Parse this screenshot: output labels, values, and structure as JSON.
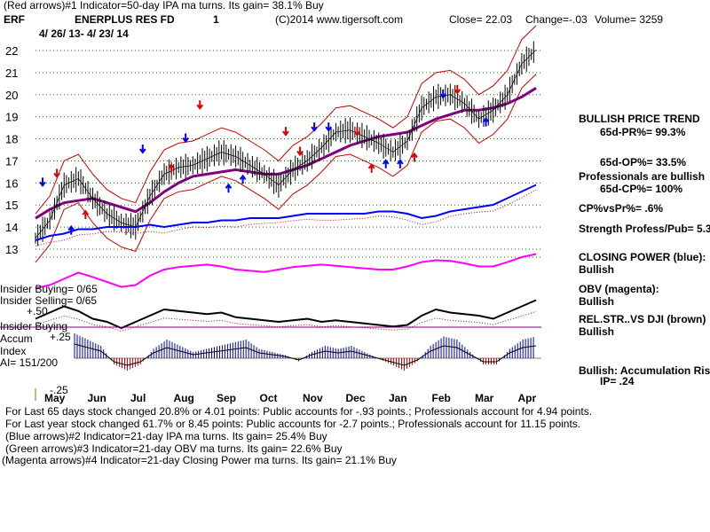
{
  "header": {
    "line1": "(Red arrows)#1 Indicator=50-day IPA ma turns. Its gain= 38.1% Buy",
    "symbol": "ERF",
    "name": "ENERPLUS RES FD",
    "one": "1",
    "copyright": "(C)2014 www.tigersoft.com",
    "close": "Close= 22.03",
    "change": "Change=-.03",
    "volume": "Volume= 3259",
    "daterange": "4/ 26/ 13- 4/ 23/ 14"
  },
  "right_panel": {
    "bullish_trend": "BULLISH PRICE TREND",
    "pr": "65d-PR%= 99.3%",
    "op": "65d-OP%= 33.5%",
    "prof1": "Professionals are bullish",
    "prof2": "65d-CP%= 100%",
    "cpvspr": "CP%vsPr%= .6%",
    "strength": "Strength Profess/Pub= 5.3",
    "cp_label": "CLOSING POWER (blue):",
    "cp_val": "Bullish",
    "obv_label": "OBV (magenta):",
    "obv_val": "Bullish",
    "rel_label": "REL.STR..VS DJI (brown)",
    "rel_val": "Bullish",
    "acc1": "Bullish: Accumulation Risi",
    "acc2": "IP= .24"
  },
  "left_labels": {
    "ins_buy": "Insider Buying= 0/65",
    "ins_sell": "Insider Selling= 0/65",
    "plus50": "+.50",
    "ins_buy2": "Insider Buying",
    "accum": "Accum",
    "index": "Index",
    "ai": "AI= 151/200",
    "plus25": "+.25",
    "minus25": "-.25"
  },
  "footer": {
    "l1": "For Last 65 days stock changed  20.8% or  4.01 points:  Public accounts for -.93 points.;  Professionals account for  4.94 points.",
    "l2": "For Last year stock changed  61.7% or  8.45 points:  Public accounts for -2.7 points.;  Professionals account for  11.15 points.",
    "l3": "(Blue arrows)#2 Indicator=21-day IPA ma turns. Its gain= 25.4% Buy",
    "l4": "(Green arrows)#3 Indicator=21-day OBV ma turns. Its gain= 22.6% Buy",
    "l5": "(Magenta arrows)#4 Indicator=21-day Closing Power ma turns. Its gain= 21.1% Buy"
  },
  "chart_data": {
    "type": "line",
    "y_ticks": [
      "22",
      "21",
      "20",
      "19",
      "18",
      "17",
      "16",
      "15",
      "14",
      "13"
    ],
    "ylim": [
      13,
      22
    ],
    "months": [
      "May",
      "Jun",
      "Jul",
      "Aug",
      "Sep",
      "Oct",
      "Nov",
      "Dec",
      "Jan",
      "Feb",
      "Mar",
      "Apr"
    ],
    "colors": {
      "price": "#000000",
      "band": "#cc0000",
      "ma": "#800080",
      "cp": "#0000ff",
      "obv": "#ff00ff",
      "rel": "#000000",
      "accum": "#0000aa",
      "grid": "#008000"
    },
    "series": [
      {
        "values": [
          13.5,
          14.3,
          15.9,
          16.2,
          15.3,
          14.6,
          14.2,
          14.0,
          15.4,
          16.4,
          16.7,
          16.8,
          17.1,
          17.4,
          17.2,
          16.8,
          16.4,
          15.9,
          16.6,
          17.0,
          17.6,
          18.3,
          18.4,
          18.1,
          17.8,
          17.4,
          17.9,
          19.4,
          19.9,
          20.0,
          19.6,
          18.9,
          19.3,
          20.0,
          21.4,
          22.03
        ]
      },
      {
        "values": [
          14.4,
          14.8,
          15.1,
          15.2,
          15.3,
          15.1,
          14.9,
          14.7,
          15.1,
          15.6,
          16.0,
          16.3,
          16.4,
          16.5,
          16.6,
          16.5,
          16.4,
          16.4,
          16.6,
          16.8,
          17.1,
          17.4,
          17.7,
          17.9,
          18.1,
          18.2,
          18.3,
          18.6,
          18.9,
          19.1,
          19.3,
          19.3,
          19.4,
          19.6,
          19.9,
          20.3
        ]
      },
      {
        "values": [
          13.4,
          13.6,
          13.7,
          13.9,
          13.9,
          14.0,
          14.0,
          14.0,
          14.1,
          14.0,
          14.1,
          14.2,
          14.2,
          14.3,
          14.3,
          14.4,
          14.4,
          14.4,
          14.5,
          14.6,
          14.6,
          14.6,
          14.6,
          14.6,
          14.7,
          14.7,
          14.6,
          14.4,
          14.5,
          14.7,
          14.8,
          14.9,
          15.0,
          15.3,
          15.6,
          15.9
        ]
      },
      {
        "values": [
          0,
          0.05,
          0.15,
          0.25,
          0.18,
          0.1,
          0.02,
          0.05,
          0.2,
          0.3,
          0.34,
          0.36,
          0.38,
          0.35,
          0.3,
          0.28,
          0.26,
          0.3,
          0.34,
          0.36,
          0.38,
          0.36,
          0.34,
          0.32,
          0.3,
          0.3,
          0.35,
          0.42,
          0.45,
          0.44,
          0.4,
          0.35,
          0.35,
          0.42,
          0.5,
          0.55
        ]
      },
      {
        "values": [
          0.3,
          0.5,
          0.7,
          0.55,
          0.3,
          0.2,
          0.0,
          0.2,
          0.4,
          0.6,
          0.55,
          0.5,
          0.45,
          0.5,
          0.35,
          0.3,
          0.25,
          0.2,
          0.25,
          0.3,
          0.2,
          0.25,
          0.2,
          0.15,
          0.1,
          0.05,
          0.1,
          0.4,
          0.6,
          0.5,
          0.45,
          0.4,
          0.3,
          0.5,
          0.7,
          0.9
        ]
      },
      {
        "values": [
          0.4,
          0.3,
          0.2,
          -0.1,
          -0.2,
          -0.1,
          0.15,
          0.3,
          0.2,
          0.1,
          0.15,
          0.2,
          0.25,
          0.3,
          0.15,
          0.1,
          0.05,
          -0.05,
          0.1,
          0.2,
          0.15,
          0.2,
          0.1,
          0.0,
          -0.1,
          -0.2,
          -0.05,
          0.2,
          0.35,
          0.3,
          0.1,
          -0.1,
          -0.1,
          0.15,
          0.3,
          0.35
        ]
      }
    ],
    "arrows_down_red": [
      [
        1,
        16.4
      ],
      [
        11,
        19.5
      ],
      [
        17,
        18.3
      ],
      [
        18,
        17.4
      ],
      [
        22,
        18.3
      ],
      [
        29,
        20.2
      ]
    ],
    "arrows_up_red": [
      [
        3,
        14.6
      ],
      [
        9,
        16.7
      ],
      [
        23,
        16.7
      ],
      [
        26,
        17.2
      ]
    ],
    "arrows_down_blue": [
      [
        0,
        16.0
      ],
      [
        7,
        17.5
      ],
      [
        10,
        18.0
      ],
      [
        19,
        18.5
      ],
      [
        20,
        18.5
      ],
      [
        28,
        20.0
      ]
    ],
    "arrows_up_blue": [
      [
        2,
        13.9
      ],
      [
        13,
        15.8
      ],
      [
        14,
        16.2
      ],
      [
        24,
        16.9
      ],
      [
        25,
        16.9
      ],
      [
        31,
        18.8
      ]
    ]
  }
}
